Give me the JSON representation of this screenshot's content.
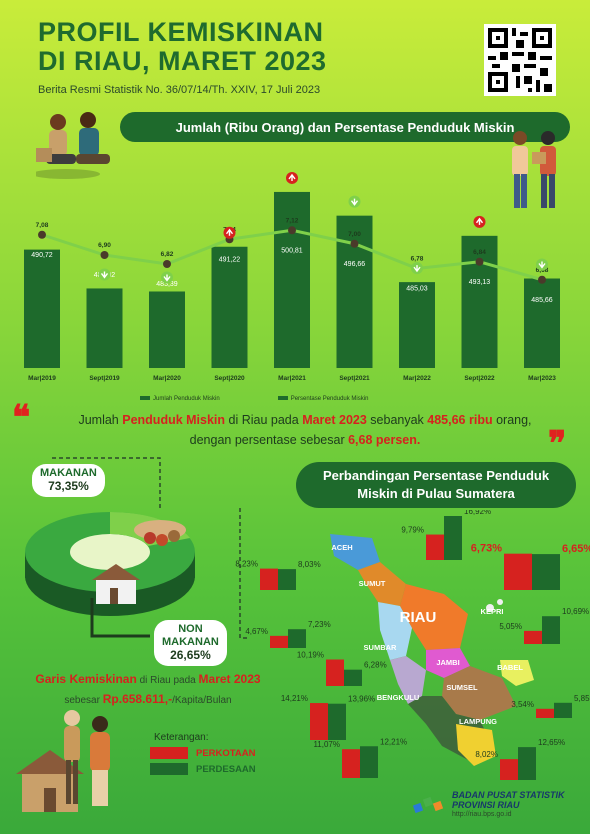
{
  "header": {
    "title_line1": "PROFIL KEMISKINAN",
    "title_line2": "DI RIAU, MARET 2023",
    "subtitle": "Berita Resmi Statistik No. 36/07/14/Th. XXIV, 17 Juli 2023"
  },
  "chart_banner": "Jumlah (Ribu Orang) dan Persentase Penduduk Miskin",
  "chart_data": {
    "type": "bar",
    "categories": [
      "Mar|2019",
      "Sept|2019",
      "Mar|2020",
      "Sept|2020",
      "Mar|2021",
      "Sept|2021",
      "Mar|2022",
      "Sept|2022",
      "Mar|2023"
    ],
    "series": [
      {
        "name": "Jumlah Penduduk Miskin",
        "type": "bar",
        "values": [
          490.72,
          483.92,
          483.39,
          491.22,
          500.81,
          496.66,
          485.03,
          493.13,
          485.66
        ],
        "labels": [
          "490,72",
          "483,92",
          "483,39",
          "491,22",
          "500,81",
          "496,66",
          "485,03",
          "493,13",
          "485,66"
        ]
      },
      {
        "name": "Persentase Penduduk Miskin",
        "type": "line",
        "values": [
          7.08,
          6.9,
          6.82,
          7.04,
          7.12,
          7.0,
          6.78,
          6.84,
          6.68
        ],
        "labels": [
          "7,08",
          "6,90",
          "6,82",
          "7,04",
          "7,12",
          "7,00",
          "6,78",
          "6,84",
          "6,68"
        ]
      }
    ],
    "trend": [
      "none",
      "down",
      "down",
      "up",
      "up",
      "down",
      "down",
      "up",
      "down"
    ],
    "colors": {
      "bar": "#1e6a2c",
      "line": "#7fd04a",
      "up": "#d6221f",
      "down": "#7fd04a"
    }
  },
  "chart_legend": {
    "bar": "Jumlah Penduduk Miskin",
    "line": "Persentase Penduduk Miskin"
  },
  "summary": {
    "p1": "Jumlah ",
    "p2": "Penduduk Miskin",
    "p3": " di Riau pada ",
    "p4": "Maret 2023",
    "p5": " sebanyak ",
    "p6": "485,66 ribu",
    "p7": " orang,",
    "p8": "dengan persentase sebesar ",
    "p9": "6,68 persen."
  },
  "composition": {
    "makanan_label": "MAKANAN",
    "makanan_value": "73,35%",
    "non_makanan_label1": "NON",
    "non_makanan_label2": "MAKANAN",
    "non_makanan_value": "26,65%"
  },
  "garis": {
    "g1": "Garis Kemiskinan",
    "g2": " di Riau  pada ",
    "g3": "Maret 2023",
    "g4": "sebesar ",
    "g5": "Rp.658.611,-",
    "g6": "/Kapita/Bulan"
  },
  "sumatera_banner_line1": "Perbandingan Persentase Penduduk",
  "sumatera_banner_line2": "Miskin di Pulau Sumatera",
  "provinces": [
    {
      "name": "ACEH",
      "kota": "9,79%",
      "desa": "16,92%",
      "kv": 9.79,
      "dv": 16.92
    },
    {
      "name": "SUMUT",
      "kota": "8,23%",
      "desa": "8,03%",
      "kv": 8.23,
      "dv": 8.03
    },
    {
      "name": "RIAU",
      "kota": "6,73%",
      "desa": "6,65%",
      "kv": 6.73,
      "dv": 6.65
    },
    {
      "name": "SUMBAR",
      "kota": "4,67%",
      "desa": "7,23%",
      "kv": 4.67,
      "dv": 7.23
    },
    {
      "name": "KEPRI",
      "kota": "5,05%",
      "desa": "10,69%",
      "kv": 5.05,
      "dv": 10.69
    },
    {
      "name": "JAMBI",
      "kota": "10,19%",
      "desa": "6,28%",
      "kv": 10.19,
      "dv": 6.28
    },
    {
      "name": "BABEL",
      "kota": "3,54%",
      "desa": "5,85%",
      "kv": 3.54,
      "dv": 5.85
    },
    {
      "name": "SUMSEL",
      "kota": "14,21%",
      "desa": "13,96%",
      "kv": 14.21,
      "dv": 13.96
    },
    {
      "name": "BENGKULU",
      "kota": "11,07%",
      "desa": "12,21%",
      "kv": 11.07,
      "dv": 12.21
    },
    {
      "name": "LAMPUNG",
      "kota": "8,02%",
      "desa": "12,65%",
      "kv": 8.02,
      "dv": 12.65
    }
  ],
  "legend": {
    "title": "Keterangan:",
    "kota": "PERKOTAAN",
    "desa": "PERDESAAN",
    "kota_color": "#d6221f",
    "desa_color": "#1e6a2c"
  },
  "footer": {
    "line1": "BADAN PUSAT STATISTIK",
    "line2": "PROVINSI RIAU",
    "url": "http://riau.bps.go.id"
  }
}
